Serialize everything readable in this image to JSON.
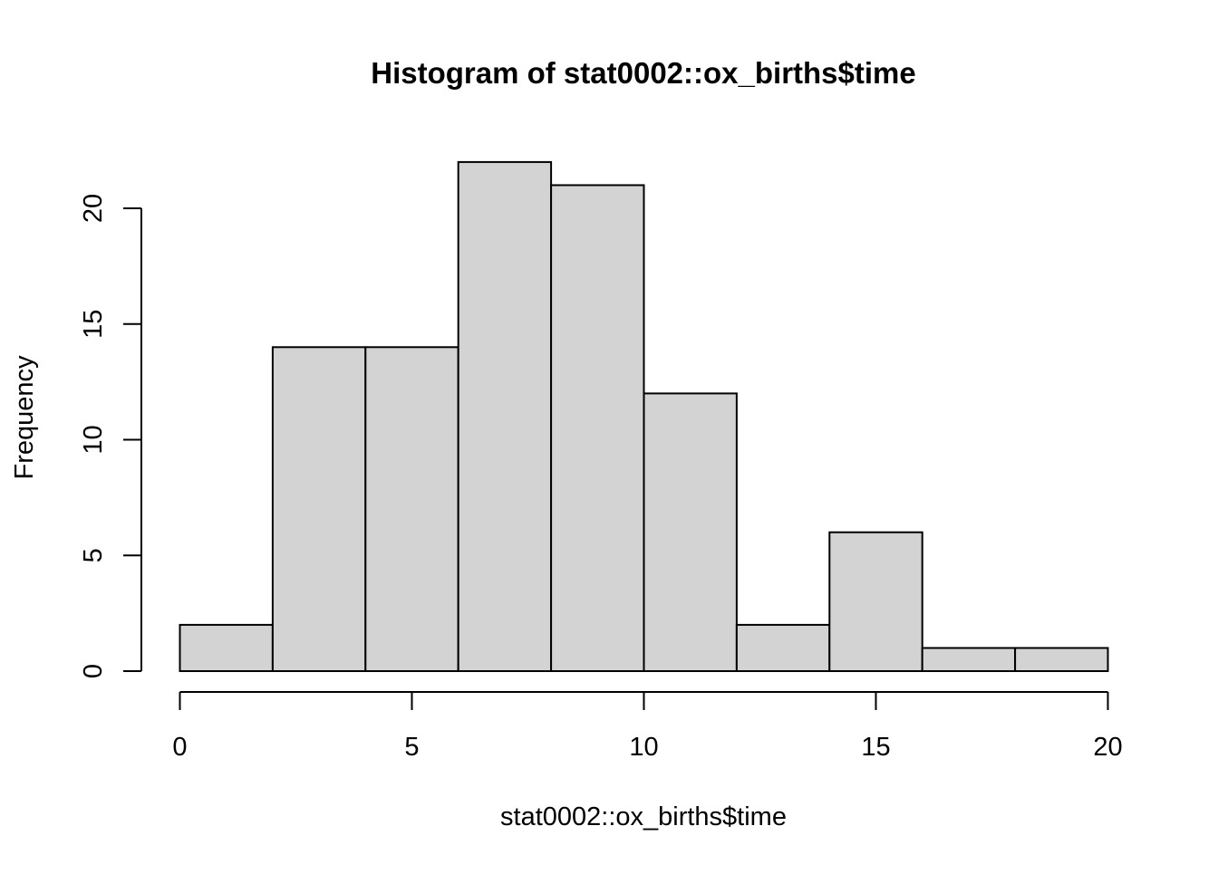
{
  "chart_data": {
    "type": "bar",
    "title": "Histogram of stat0002::ox_births$time",
    "xlabel": "stat0002::ox_births$time",
    "ylabel": "Frequency",
    "bins": [
      {
        "from": 0,
        "to": 2,
        "count": 2
      },
      {
        "from": 2,
        "to": 4,
        "count": 14
      },
      {
        "from": 4,
        "to": 6,
        "count": 14
      },
      {
        "from": 6,
        "to": 8,
        "count": 22
      },
      {
        "from": 8,
        "to": 10,
        "count": 21
      },
      {
        "from": 10,
        "to": 12,
        "count": 12
      },
      {
        "from": 12,
        "to": 14,
        "count": 2
      },
      {
        "from": 14,
        "to": 16,
        "count": 6
      },
      {
        "from": 16,
        "to": 18,
        "count": 1
      },
      {
        "from": 18,
        "to": 20,
        "count": 1
      }
    ],
    "xlim": [
      0,
      20
    ],
    "ylim": [
      0,
      22
    ],
    "x_ticks": [
      "0",
      "5",
      "10",
      "15",
      "20"
    ],
    "y_ticks": [
      "0",
      "5",
      "10",
      "15",
      "20"
    ],
    "grid": false,
    "legend": "none",
    "colors": {
      "bar_fill": "#d3d3d3",
      "bar_stroke": "#000000",
      "background": "#ffffff"
    }
  }
}
